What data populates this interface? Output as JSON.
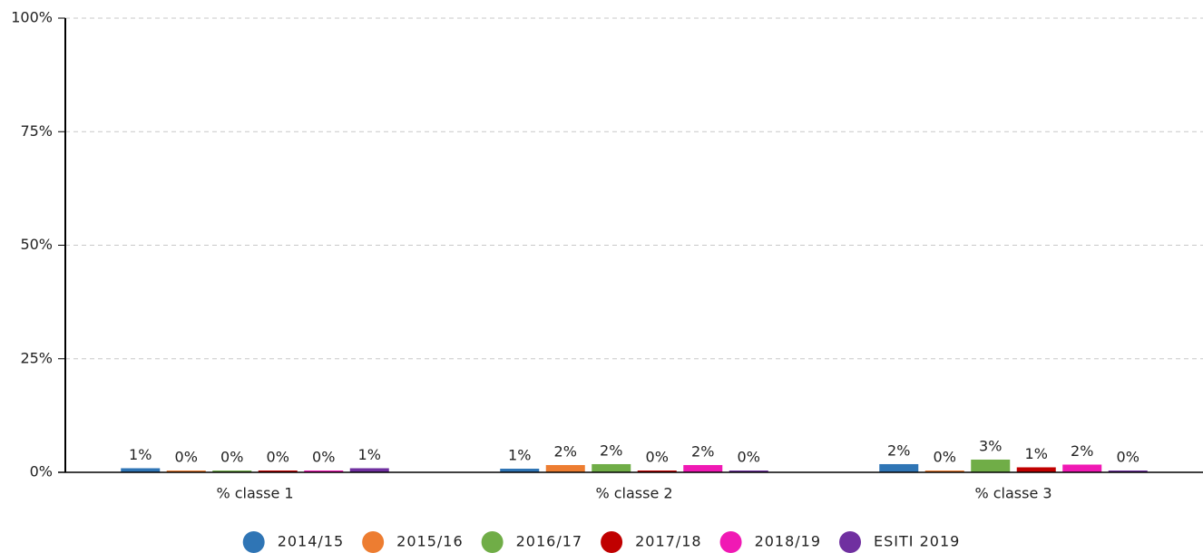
{
  "chart_data": {
    "type": "bar",
    "categories": [
      "% classe 1",
      "% classe 2",
      "% classe 3"
    ],
    "series": [
      {
        "name": "2014/15",
        "color": "#2f75b5",
        "values": [
          0.9,
          0.8,
          1.8
        ],
        "value_labels": [
          "1%",
          "1%",
          "2%"
        ]
      },
      {
        "name": "2015/16",
        "color": "#ed7d31",
        "values": [
          0.4,
          1.6,
          0.4
        ],
        "value_labels": [
          "0%",
          "2%",
          "0%"
        ]
      },
      {
        "name": "2016/17",
        "color": "#70ad47",
        "values": [
          0.4,
          1.8,
          2.8
        ],
        "value_labels": [
          "0%",
          "2%",
          "3%"
        ]
      },
      {
        "name": "2017/18",
        "color": "#c00000",
        "values": [
          0.4,
          0.4,
          1.1
        ],
        "value_labels": [
          "0%",
          "0%",
          "1%"
        ]
      },
      {
        "name": "2018/19",
        "color": "#f019b4",
        "values": [
          0.4,
          1.6,
          1.7
        ],
        "value_labels": [
          "0%",
          "2%",
          "2%"
        ]
      },
      {
        "name": "ESITI 2019",
        "color": "#7030a0",
        "values": [
          0.9,
          0.4,
          0.4
        ],
        "value_labels": [
          "1%",
          "0%",
          "0%"
        ]
      }
    ],
    "ylim": [
      0,
      100
    ],
    "yticks": [
      {
        "value": 0,
        "label": "0%"
      },
      {
        "value": 25,
        "label": "25%"
      },
      {
        "value": 50,
        "label": "50%"
      },
      {
        "value": 75,
        "label": "75%"
      },
      {
        "value": 100,
        "label": "100%"
      }
    ],
    "grid": true,
    "legend": "bottom"
  }
}
